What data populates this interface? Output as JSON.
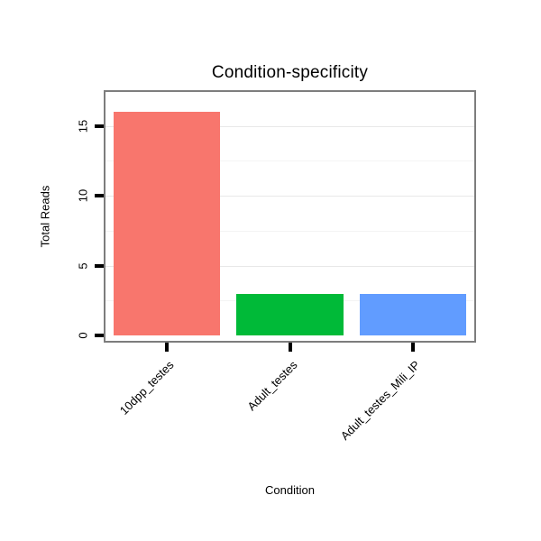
{
  "chart_data": {
    "type": "bar",
    "title": "Condition-specificity",
    "xlabel": "Condition",
    "ylabel": "Total Reads",
    "categories": [
      "10dpp_testes",
      "Adult_testes",
      "Adult_testes_Mili_IP"
    ],
    "values": [
      16,
      3,
      3
    ],
    "colors": [
      "#F8766D",
      "#00BA38",
      "#619CFF"
    ],
    "yticks": [
      0,
      5,
      10,
      15
    ],
    "ylim": [
      0,
      17
    ],
    "legend": "none",
    "grid": "faint horizontal major and minor lines",
    "panel_border_color": "#7d7d7d",
    "tick_color": "#000000"
  }
}
